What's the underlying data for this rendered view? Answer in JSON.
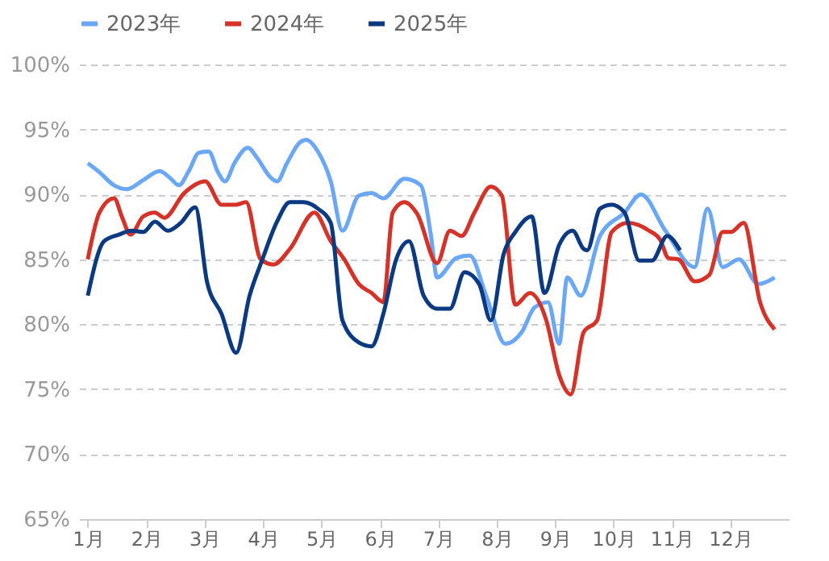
{
  "chart_data": {
    "type": "line",
    "xlim": [
      0.85,
      13
    ],
    "xticks": [
      {
        "value": 1,
        "label": "1月"
      },
      {
        "value": 2,
        "label": "2月"
      },
      {
        "value": 3,
        "label": "3月"
      },
      {
        "value": 4,
        "label": "4月"
      },
      {
        "value": 5,
        "label": "5月"
      },
      {
        "value": 6,
        "label": "6月"
      },
      {
        "value": 7,
        "label": "7月"
      },
      {
        "value": 8,
        "label": "8月"
      },
      {
        "value": 9,
        "label": "9月"
      },
      {
        "value": 10,
        "label": "10月"
      },
      {
        "value": 11,
        "label": "11月"
      },
      {
        "value": 12,
        "label": "12月"
      }
    ],
    "ylim": [
      65,
      100
    ],
    "yticks": [
      {
        "value": 65,
        "label": "65%"
      },
      {
        "value": 70,
        "label": "70%"
      },
      {
        "value": 75,
        "label": "75%"
      },
      {
        "value": 80,
        "label": "80%"
      },
      {
        "value": 85,
        "label": "85%"
      },
      {
        "value": 90,
        "label": "90%"
      },
      {
        "value": 95,
        "label": "95%"
      },
      {
        "value": 100,
        "label": "100%"
      }
    ],
    "grid": "y",
    "legend": "top",
    "line_style": "solid",
    "marker": "none",
    "series": [
      {
        "name": "2023年",
        "color": "#6aa8f7",
        "x": [
          1.0,
          1.2,
          1.45,
          1.67,
          1.95,
          2.23,
          2.4,
          2.56,
          2.73,
          2.9,
          3.07,
          3.23,
          3.35,
          3.51,
          3.74,
          3.9,
          4.13,
          4.24,
          4.41,
          4.63,
          4.74,
          4.94,
          5.16,
          5.36,
          5.64,
          5.86,
          6.06,
          6.42,
          6.7,
          6.87,
          6.98,
          7.31,
          7.54,
          7.82,
          8.15,
          8.43,
          8.65,
          8.88,
          9.07,
          9.21,
          9.44,
          9.77,
          10.19,
          10.47,
          10.89,
          11.39,
          11.61,
          11.87,
          12.15,
          12.48,
          12.76
        ],
        "values": [
          92.4,
          91.7,
          90.7,
          90.4,
          91.1,
          91.8,
          91.3,
          90.7,
          91.8,
          93.2,
          93.3,
          91.7,
          91.0,
          92.4,
          93.6,
          92.8,
          91.3,
          91.0,
          92.4,
          94.0,
          94.2,
          93.3,
          91.0,
          87.2,
          89.9,
          90.1,
          89.7,
          91.2,
          90.7,
          87.0,
          83.6,
          85.1,
          85.3,
          82.2,
          78.5,
          79.4,
          81.3,
          81.7,
          78.5,
          83.6,
          82.2,
          86.8,
          88.6,
          90.0,
          87.2,
          84.4,
          88.9,
          84.4,
          85.0,
          83.1,
          83.6
        ]
      },
      {
        "name": "2024年",
        "color": "#d63228",
        "x": [
          1.0,
          1.2,
          1.45,
          1.59,
          1.73,
          1.95,
          2.15,
          2.31,
          2.65,
          3.01,
          3.29,
          3.54,
          3.71,
          3.96,
          4.18,
          4.46,
          4.88,
          5.16,
          5.39,
          5.64,
          5.86,
          6.06,
          6.22,
          6.42,
          6.64,
          6.98,
          7.2,
          7.4,
          7.62,
          7.9,
          8.09,
          8.32,
          8.57,
          8.85,
          9.07,
          9.27,
          9.49,
          9.72,
          9.97,
          10.25,
          10.61,
          10.8,
          10.94,
          11.11,
          11.39,
          11.64,
          11.87,
          12.01,
          12.23,
          12.51,
          12.76
        ],
        "values": [
          85.0,
          88.6,
          89.7,
          88.2,
          86.9,
          88.3,
          88.6,
          88.2,
          90.1,
          91.0,
          89.2,
          89.2,
          89.4,
          85.0,
          84.6,
          85.8,
          88.6,
          86.4,
          85.0,
          83.1,
          82.4,
          81.7,
          88.6,
          89.4,
          88.5,
          84.7,
          87.2,
          86.8,
          88.6,
          90.6,
          89.9,
          81.5,
          82.4,
          80.3,
          76.1,
          74.6,
          79.4,
          80.3,
          87.1,
          87.8,
          87.2,
          86.5,
          85.1,
          85.0,
          83.3,
          83.8,
          87.1,
          87.1,
          87.8,
          81.7,
          79.6
        ]
      },
      {
        "name": "2025年",
        "color": "#0b3a82",
        "x": [
          1.0,
          1.28,
          1.53,
          1.75,
          1.95,
          2.15,
          2.37,
          2.59,
          2.84,
          3.04,
          3.29,
          3.54,
          3.77,
          3.99,
          4.24,
          4.46,
          4.69,
          4.94,
          5.16,
          5.36,
          5.64,
          5.86,
          6.06,
          6.28,
          6.5,
          6.75,
          6.98,
          7.2,
          7.45,
          7.7,
          7.9,
          8.12,
          8.32,
          8.6,
          8.82,
          9.07,
          9.3,
          9.49,
          9.55,
          9.77,
          9.97,
          10.19,
          10.44,
          10.66,
          10.92,
          11.14
        ],
        "values": [
          82.2,
          86.4,
          86.9,
          87.2,
          87.1,
          87.9,
          87.2,
          87.8,
          89.0,
          83.3,
          80.8,
          77.8,
          82.2,
          85.0,
          87.9,
          89.4,
          89.4,
          88.9,
          87.8,
          80.3,
          78.6,
          78.3,
          80.8,
          85.0,
          86.4,
          82.2,
          81.2,
          81.2,
          84.0,
          83.1,
          80.3,
          85.4,
          87.1,
          88.3,
          82.4,
          86.1,
          87.2,
          85.8,
          85.7,
          88.9,
          89.2,
          88.6,
          84.9,
          84.9,
          86.8,
          85.7
        ]
      }
    ]
  }
}
